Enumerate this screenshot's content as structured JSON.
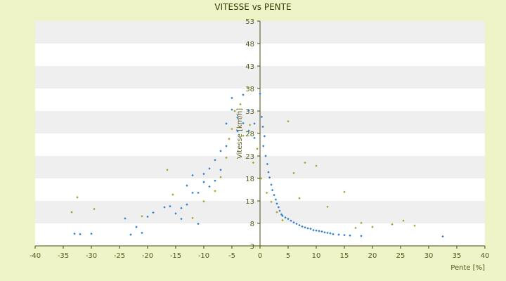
{
  "chart_data": {
    "type": "scatter",
    "title": "VITESSE vs PENTE",
    "xlabel": "Pente [%]",
    "ylabel": "Vitesse [km/h]",
    "xlim": [
      -40,
      40
    ],
    "ylim": [
      3,
      53
    ],
    "x_ticks": [
      -40,
      -35,
      -30,
      -25,
      -20,
      -15,
      -10,
      -5,
      0,
      5,
      10,
      15,
      20,
      25,
      30,
      35,
      40
    ],
    "y_ticks": [
      3,
      8,
      13,
      18,
      23,
      28,
      33,
      38,
      43,
      48,
      53
    ],
    "grid": "horizontal alternating bands",
    "legend": "none",
    "colors": {
      "background": "#eef3c8",
      "plot_band_light": "#ffffff",
      "plot_band_dark": "#efefef",
      "axis": "#4a4a10",
      "series_blue": "#2f7fd0",
      "series_olive": "#a7a22a"
    },
    "series": [
      {
        "color": "blue",
        "points": [
          [
            -33,
            5.7
          ],
          [
            -32,
            5.6
          ],
          [
            -30,
            5.7
          ],
          [
            -23,
            5.5
          ],
          [
            -21,
            5.9
          ],
          [
            -22,
            7.2
          ],
          [
            -24,
            9.1
          ],
          [
            -20,
            9.5
          ],
          [
            -19,
            10.4
          ],
          [
            -17,
            11.6
          ],
          [
            -16,
            11.8
          ],
          [
            -15,
            10.2
          ],
          [
            -14,
            9.0
          ],
          [
            -14,
            11.4
          ],
          [
            -13,
            12.2
          ],
          [
            -13,
            16.4
          ],
          [
            -12,
            18.7
          ],
          [
            -12,
            14.8
          ],
          [
            -11,
            7.9
          ],
          [
            -11,
            14.8
          ],
          [
            -10,
            17.2
          ],
          [
            -10,
            19.0
          ],
          [
            -9,
            16.2
          ],
          [
            -9,
            20.2
          ],
          [
            -8,
            17.5
          ],
          [
            -8,
            22.1
          ],
          [
            -7,
            24.1
          ],
          [
            -7,
            19.9
          ],
          [
            -6,
            25.2
          ],
          [
            -6,
            30.2
          ],
          [
            -5,
            35.9
          ],
          [
            -5,
            33.3
          ],
          [
            -4,
            31.5
          ],
          [
            -4,
            28.5
          ],
          [
            -3,
            30.3
          ],
          [
            -3,
            36.6
          ],
          [
            -2,
            33.1
          ],
          [
            -2,
            28.6
          ],
          [
            -1,
            30.2
          ],
          [
            -1,
            27.0
          ],
          [
            0,
            36.8
          ],
          [
            0.3,
            31.7
          ],
          [
            0.5,
            29.5
          ],
          [
            0.8,
            27.4
          ],
          [
            0.6,
            25.2
          ],
          [
            1,
            23.0
          ],
          [
            1.3,
            21.2
          ],
          [
            1.5,
            19.4
          ],
          [
            1.7,
            18.2
          ],
          [
            2,
            16.6
          ],
          [
            2.2,
            15.4
          ],
          [
            2.5,
            14.3
          ],
          [
            2.8,
            13.3
          ],
          [
            3,
            12.4
          ],
          [
            3.3,
            11.6
          ],
          [
            3.5,
            10.8
          ],
          [
            3.8,
            10.0
          ],
          [
            4,
            9.7
          ],
          [
            4.5,
            9.3
          ],
          [
            5,
            9.0
          ],
          [
            5.5,
            8.6
          ],
          [
            6,
            8.2
          ],
          [
            6.5,
            7.9
          ],
          [
            7,
            7.6
          ],
          [
            7.5,
            7.3
          ],
          [
            8,
            7.1
          ],
          [
            8.5,
            6.9
          ],
          [
            9,
            6.8
          ],
          [
            9.5,
            6.5
          ],
          [
            10,
            6.4
          ],
          [
            10.5,
            6.3
          ],
          [
            11,
            6.2
          ],
          [
            11.5,
            6.0
          ],
          [
            12,
            5.9
          ],
          [
            12.5,
            5.8
          ],
          [
            13,
            5.6
          ],
          [
            14,
            5.5
          ],
          [
            15,
            5.4
          ],
          [
            16,
            5.3
          ],
          [
            18,
            5.2
          ],
          [
            32.5,
            5.1
          ]
        ]
      },
      {
        "color": "olive",
        "points": [
          [
            -33.5,
            10.5
          ],
          [
            -32.5,
            13.8
          ],
          [
            -29.5,
            11.2
          ],
          [
            -21,
            9.6
          ],
          [
            -16.5,
            19.9
          ],
          [
            -15.5,
            14.4
          ],
          [
            -12,
            9.2
          ],
          [
            -10,
            12.9
          ],
          [
            -8,
            15.2
          ],
          [
            -7,
            18.3
          ],
          [
            -6,
            22.6
          ],
          [
            -5.5,
            26.8
          ],
          [
            -5,
            29.0
          ],
          [
            -4.5,
            33.0
          ],
          [
            -3.5,
            34.5
          ],
          [
            -3,
            27.5
          ],
          [
            -2.2,
            38.3
          ],
          [
            -1.8,
            29.9
          ],
          [
            -1.2,
            21.5
          ],
          [
            -0.5,
            24.6
          ],
          [
            0.2,
            18.0
          ],
          [
            1.2,
            14.8
          ],
          [
            2,
            12.8
          ],
          [
            3,
            10.5
          ],
          [
            4,
            8.7
          ],
          [
            5,
            30.7
          ],
          [
            6,
            19.2
          ],
          [
            7,
            13.6
          ],
          [
            8,
            21.5
          ],
          [
            10,
            20.8
          ],
          [
            12,
            11.7
          ],
          [
            15,
            15.0
          ],
          [
            17,
            7.0
          ],
          [
            18,
            8.1
          ],
          [
            20,
            7.2
          ],
          [
            23.5,
            7.8
          ],
          [
            25.5,
            8.6
          ],
          [
            27.5,
            7.5
          ]
        ]
      }
    ]
  }
}
